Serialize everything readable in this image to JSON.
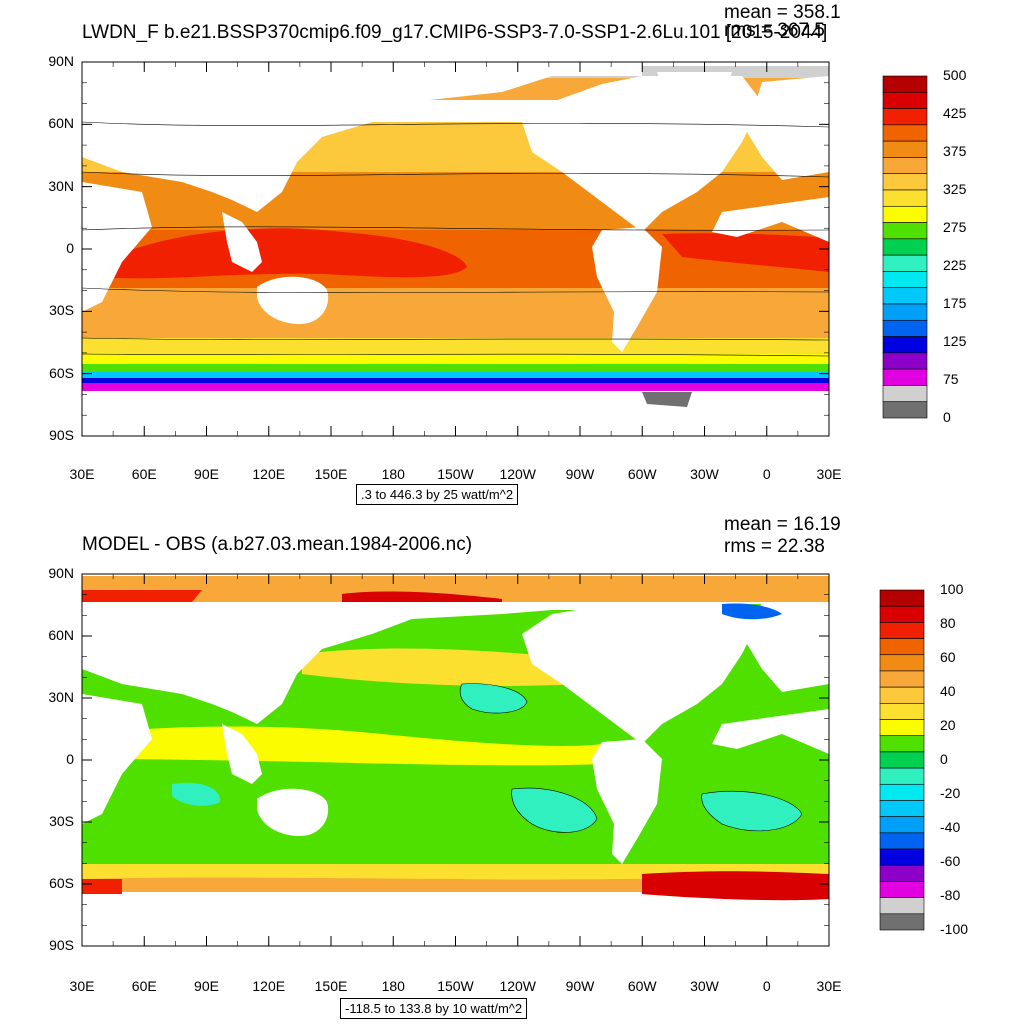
{
  "panels": [
    {
      "title": "LWDN_F b.e21.BSSP370cmip6.f09_g17.CMIP6-SSP3-7.0-SSP1-2.6Lu.101 [2015-2044]",
      "mean": "mean = 358.1",
      "rms": "rms = 367.5",
      "contour_info": ".3 to 446.3 by 25 watt/m^2",
      "lat_labels": [
        "90N",
        "60N",
        "30N",
        "0",
        "30S",
        "60S",
        "90S"
      ],
      "lon_labels": [
        "30E",
        "60E",
        "90E",
        "120E",
        "150E",
        "180",
        "150W",
        "120W",
        "90W",
        "60W",
        "30W",
        "0",
        "30E"
      ],
      "colorbar_labels": [
        "500",
        "425",
        "375",
        "325",
        "275",
        "225",
        "175",
        "125",
        "75",
        "0"
      ],
      "colorbar_colors": [
        "#b40000",
        "#d80000",
        "#f02000",
        "#f06400",
        "#f08c14",
        "#f8a838",
        "#fcc83c",
        "#fce030",
        "#fcfc00",
        "#50e000",
        "#00d050",
        "#30f0c0",
        "#00e8f0",
        "#00c8f8",
        "#00a0f8",
        "#0064f0",
        "#0000e0",
        "#8c00c8",
        "#e000e0",
        "#d0d0d0",
        "#707070"
      ]
    },
    {
      "title": "MODEL - OBS (a.b27.03.mean.1984-2006.nc)",
      "mean": "mean = 16.19",
      "rms": "rms = 22.38",
      "contour_info": "-118.5 to 133.8 by 10 watt/m^2",
      "lat_labels": [
        "90N",
        "60N",
        "30N",
        "0",
        "30S",
        "60S",
        "90S"
      ],
      "lon_labels": [
        "30E",
        "60E",
        "90E",
        "120E",
        "150E",
        "180",
        "150W",
        "120W",
        "90W",
        "60W",
        "30W",
        "0",
        "30E"
      ],
      "colorbar_labels": [
        "100",
        "80",
        "60",
        "40",
        "20",
        "0",
        "-20",
        "-40",
        "-60",
        "-80",
        "-100"
      ],
      "colorbar_colors": [
        "#b40000",
        "#d80000",
        "#f02000",
        "#f06400",
        "#f08c14",
        "#f8a838",
        "#fcc83c",
        "#fce030",
        "#fcfc00",
        "#50e000",
        "#00d050",
        "#30f0c0",
        "#00e8f0",
        "#00c8f8",
        "#00a0f8",
        "#0064f0",
        "#0000e0",
        "#8c00c8",
        "#e000e0",
        "#d0d0d0",
        "#707070"
      ]
    }
  ]
}
